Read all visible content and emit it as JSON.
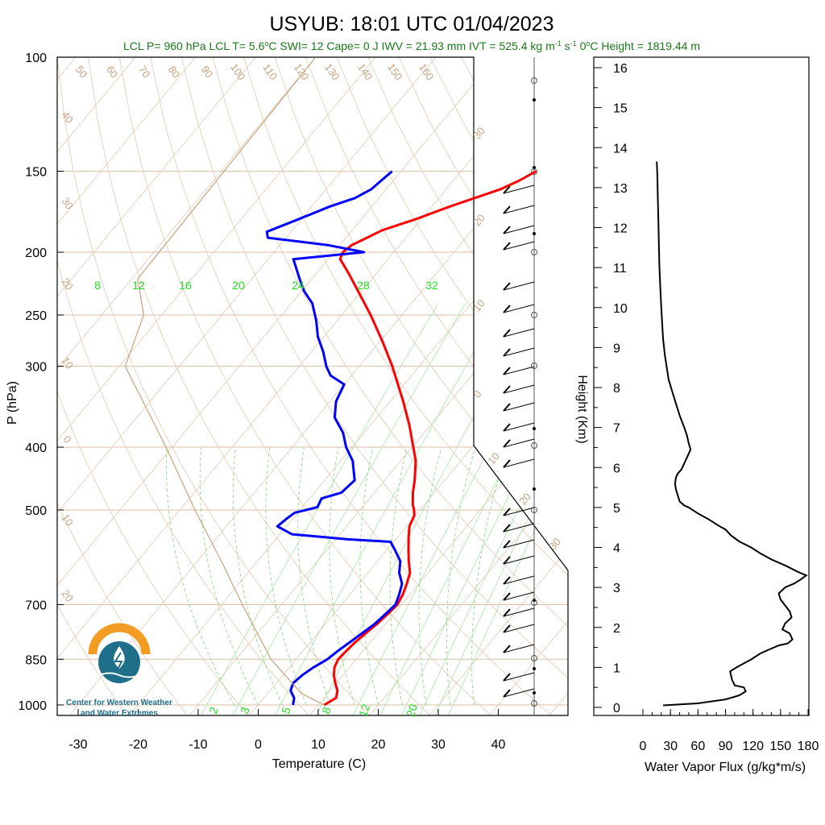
{
  "chart_data": [
    {
      "type": "line",
      "title": "USYUB: 18:01 UTC 01/04/2023",
      "subtitle": "LCL P= 960 hPa  LCL T= 5.6°C  SWI= 12  Cape= 0 J  IWV = 21.93 mm  IVT = 525.4 kg m-1 s-1  0°C Height = 1819.44 m",
      "subtitle_parts": {
        "main": "LCL P= 960 hPa  LCL T= 5.6",
        "deg1": "o",
        "c1": "C  SWI= 12  Cape= 0 J  IWV = 21.93 mm  IVT = 525.4 kg m",
        "exp1": "-1",
        "s": " s",
        "exp2": "-1",
        "deg2_pre": "  0",
        "deg2": "o",
        "tail": "C Height = 1819.44 m"
      },
      "xlabel": "Temperature (C)",
      "ylabel": "P (hPa)",
      "xlim": [
        -34,
        52
      ],
      "ylim": [
        1050,
        100
      ],
      "xticks": [
        -30,
        -20,
        -10,
        0,
        10,
        20,
        30,
        40
      ],
      "xtick_labels": [
        "-30",
        "-20",
        "-10",
        "0",
        "10",
        "20",
        "30",
        "40"
      ],
      "yticks": [
        100,
        150,
        200,
        250,
        300,
        400,
        500,
        700,
        850,
        1000
      ],
      "ytick_labels": [
        "100",
        "150",
        "200",
        "250",
        "300",
        "400",
        "500",
        "700",
        "850",
        "1000"
      ],
      "mixing_ratio_labels": [
        "8",
        "12",
        "16",
        "20",
        "24",
        "28",
        "32"
      ],
      "bottom_mixing_labels": [
        "2",
        "3",
        "5",
        "8",
        "12",
        "20"
      ],
      "dry_adiabat_labels": [
        "50",
        "60",
        "70",
        "80",
        "90",
        "100",
        "110",
        "120",
        "130",
        "140",
        "150",
        "160"
      ],
      "left_isotherm_labels": [
        "40",
        "30",
        "20",
        "10",
        "0",
        "10",
        "20"
      ],
      "right_isotherm_labels": [
        "30",
        "20",
        "10",
        "0",
        "10",
        "20",
        "30"
      ],
      "series": [
        {
          "name": "temperature",
          "color": "#ff0000",
          "points": [
            [
              1000,
              11.0
            ],
            [
              975,
              12.0
            ],
            [
              950,
              11.2
            ],
            [
              925,
              9.8
            ],
            [
              900,
              8.5
            ],
            [
              875,
              7.5
            ],
            [
              850,
              7.0
            ],
            [
              825,
              7.2
            ],
            [
              800,
              7.5
            ],
            [
              775,
              8.0
            ],
            [
              750,
              8.6
            ],
            [
              725,
              9.0
            ],
            [
              700,
              9.3
            ],
            [
              675,
              8.8
            ],
            [
              650,
              8.0
            ],
            [
              625,
              7.0
            ],
            [
              600,
              5.2
            ],
            [
              575,
              3.5
            ],
            [
              550,
              1.8
            ],
            [
              530,
              0.5
            ],
            [
              510,
              -0.2
            ],
            [
              500,
              -1.0
            ],
            [
              490,
              -2.0
            ],
            [
              470,
              -3.6
            ],
            [
              450,
              -5.0
            ],
            [
              420,
              -7.5
            ],
            [
              400,
              -9.8
            ],
            [
              370,
              -13.5
            ],
            [
              340,
              -17.8
            ],
            [
              300,
              -24.5
            ],
            [
              275,
              -29.5
            ],
            [
              250,
              -35.2
            ],
            [
              230,
              -40.5
            ],
            [
              215,
              -44.8
            ],
            [
              205,
              -48.0
            ],
            [
              200,
              -48.5
            ],
            [
              195,
              -48.0
            ],
            [
              190,
              -46.5
            ],
            [
              185,
              -45.0
            ],
            [
              178,
              -41.0
            ],
            [
              170,
              -37.0
            ],
            [
              160,
              -31.0
            ],
            [
              155,
              -29.0
            ],
            [
              150,
              -27.5
            ]
          ]
        },
        {
          "name": "dewpoint",
          "color": "#0000ff",
          "points": [
            [
              1000,
              5.8
            ],
            [
              975,
              5.0
            ],
            [
              950,
              3.4
            ],
            [
              925,
              2.8
            ],
            [
              900,
              3.2
            ],
            [
              875,
              4.0
            ],
            [
              850,
              5.2
            ],
            [
              825,
              5.8
            ],
            [
              800,
              6.6
            ],
            [
              775,
              7.4
            ],
            [
              750,
              8.2
            ],
            [
              725,
              8.6
            ],
            [
              700,
              9.0
            ],
            [
              675,
              8.2
            ],
            [
              650,
              7.2
            ],
            [
              625,
              5.2
            ],
            [
              600,
              3.8
            ],
            [
              575,
              1.2
            ],
            [
              560,
              -0.5
            ],
            [
              555,
              -8.0
            ],
            [
              545,
              -18.0
            ],
            [
              530,
              -21.5
            ],
            [
              515,
              -21.0
            ],
            [
              505,
              -20.5
            ],
            [
              495,
              -17.5
            ],
            [
              480,
              -18.0
            ],
            [
              470,
              -15.5
            ],
            [
              450,
              -15.0
            ],
            [
              420,
              -18.0
            ],
            [
              400,
              -21.0
            ],
            [
              380,
              -23.5
            ],
            [
              360,
              -27.0
            ],
            [
              340,
              -29.0
            ],
            [
              320,
              -30.0
            ],
            [
              310,
              -33.5
            ],
            [
              300,
              -35.5
            ],
            [
              285,
              -38.0
            ],
            [
              270,
              -41.0
            ],
            [
              255,
              -43.5
            ],
            [
              240,
              -46.5
            ],
            [
              230,
              -49.5
            ],
            [
              220,
              -52.0
            ],
            [
              210,
              -54.5
            ],
            [
              205,
              -55.8
            ],
            [
              200,
              -45.0
            ],
            [
              195,
              -52.0
            ],
            [
              190,
              -63.0
            ],
            [
              186,
              -64.0
            ],
            [
              178,
              -60.5
            ],
            [
              170,
              -57.0
            ],
            [
              165,
              -54.0
            ],
            [
              160,
              -52.5
            ],
            [
              155,
              -52.0
            ],
            [
              150,
              -51.5
            ]
          ]
        },
        {
          "name": "parcel",
          "color": "#c8a27c",
          "points": [
            [
              1000,
              11.0
            ],
            [
              960,
              5.6
            ],
            [
              850,
              -4.2
            ],
            [
              700,
              -16.5
            ],
            [
              600,
              -26.0
            ],
            [
              500,
              -37.5
            ],
            [
              400,
              -51.0
            ],
            [
              300,
              -69.0
            ],
            [
              250,
              -73.0
            ],
            [
              220,
              -79.0
            ],
            [
              150,
              -79.5
            ],
            [
              100,
              -80.0
            ]
          ]
        }
      ]
    },
    {
      "type": "line",
      "xlabel": "Water Vapor Flux (g/kg*m/s)",
      "ylabel": "Height (Km)",
      "xlim": [
        0,
        180
      ],
      "ylim": [
        -0.2,
        16.5
      ],
      "xticks": [
        0,
        30,
        60,
        90,
        120,
        150,
        180
      ],
      "xtick_labels": [
        "0",
        "30",
        "60",
        "90",
        "120",
        "150",
        "180"
      ],
      "yticks": [
        0,
        1,
        2,
        3,
        4,
        5,
        6,
        7,
        8,
        9,
        10,
        11,
        12,
        13,
        14,
        15,
        16
      ],
      "ytick_labels": [
        "0",
        "1",
        "2",
        "3",
        "4",
        "5",
        "6",
        "7",
        "8",
        "9",
        "10",
        "11",
        "12",
        "13",
        "14",
        "15",
        "16"
      ],
      "series": [
        {
          "name": "water vapor flux",
          "color": "#000000",
          "x": [
            22,
            60,
            90,
            105,
            112,
            110,
            100,
            97,
            95,
            102,
            110,
            118,
            128,
            138,
            148,
            158,
            163,
            160,
            152,
            155,
            162,
            160,
            155,
            150,
            148,
            155,
            165,
            172,
            178,
            168,
            155,
            140,
            128,
            118,
            105,
            96,
            90,
            82,
            72,
            60,
            50,
            45,
            40,
            38,
            36,
            35,
            36,
            38,
            42,
            44,
            46,
            48,
            50,
            52,
            50,
            48,
            45,
            40,
            36,
            32,
            28,
            26,
            24,
            22,
            21,
            20,
            19,
            18,
            17.5,
            17,
            16.5,
            16,
            15.7,
            15.4,
            15.2,
            15.0
          ],
          "y": [
            0.05,
            0.1,
            0.2,
            0.3,
            0.4,
            0.5,
            0.55,
            0.7,
            0.9,
            1.0,
            1.1,
            1.2,
            1.35,
            1.45,
            1.55,
            1.6,
            1.7,
            1.85,
            1.95,
            2.1,
            2.25,
            2.4,
            2.55,
            2.7,
            2.85,
            3.0,
            3.1,
            3.2,
            3.3,
            3.4,
            3.55,
            3.7,
            3.85,
            4.0,
            4.15,
            4.3,
            4.45,
            4.55,
            4.7,
            4.85,
            5.0,
            5.05,
            5.15,
            5.3,
            5.45,
            5.6,
            5.75,
            5.85,
            5.95,
            6.05,
            6.15,
            6.25,
            6.35,
            6.45,
            6.6,
            6.8,
            7.0,
            7.3,
            7.6,
            7.9,
            8.2,
            8.5,
            8.8,
            9.2,
            9.6,
            10.0,
            10.5,
            11.0,
            11.5,
            12.0,
            12.5,
            13.0,
            13.3,
            13.5,
            13.6,
            13.65
          ]
        }
      ]
    }
  ],
  "logo": {
    "line1": "Center for Western Weather",
    "line2": "and Water Extremes",
    "arc_color": "#f39c23",
    "water_color": "#1f6f8b"
  }
}
